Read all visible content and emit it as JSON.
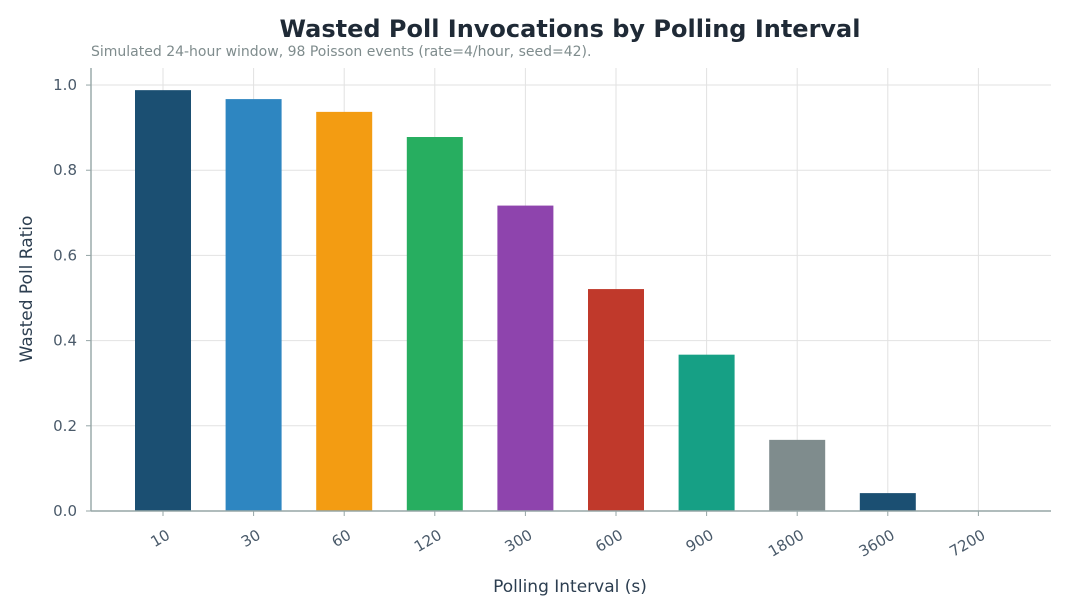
{
  "chart_data": {
    "type": "bar",
    "title": "Wasted Poll Invocations by Polling Interval",
    "subtitle": "Simulated 24-hour window, 98 Poisson events (rate=4/hour, seed=42).",
    "xlabel": "Polling Interval (s)",
    "ylabel": "Wasted Poll Ratio",
    "categories": [
      "10",
      "30",
      "60",
      "120",
      "300",
      "600",
      "900",
      "1800",
      "3600",
      "7200"
    ],
    "values": [
      0.988,
      0.967,
      0.937,
      0.878,
      0.717,
      0.521,
      0.367,
      0.167,
      0.042,
      0.0
    ],
    "colors": [
      "#1b4f72",
      "#2e86c1",
      "#f39c12",
      "#27ae60",
      "#8e44ad",
      "#c0392b",
      "#16a085",
      "#7f8c8d",
      "#1b4f72",
      "#1b4f72"
    ],
    "ylim": [
      0,
      1.04
    ],
    "yticks": [
      "0.0",
      "0.2",
      "0.4",
      "0.6",
      "0.8",
      "1.0"
    ],
    "grid": true,
    "legend": "none"
  }
}
